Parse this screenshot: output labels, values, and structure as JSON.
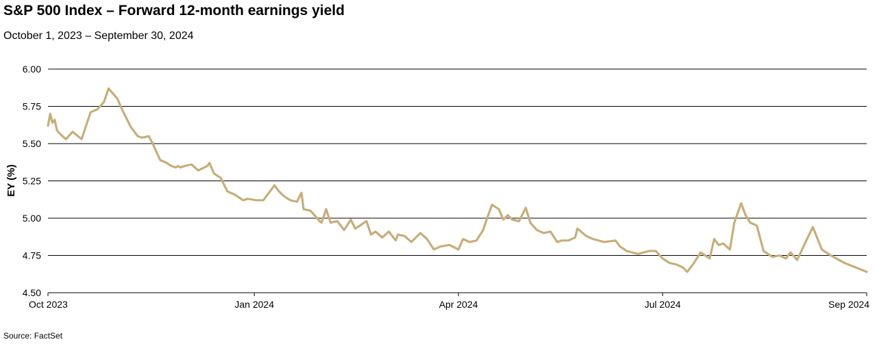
{
  "chart_data": {
    "type": "line",
    "title": "S&P 500 Index – Forward 12-month earnings yield",
    "subtitle": "October 1, 2023 – September 30, 2024",
    "ylabel": "EY (%)",
    "xlabel": "",
    "source": "Source: FactSet",
    "ylim": [
      4.5,
      6.0
    ],
    "yticks": [
      "6.00",
      "5.75",
      "5.50",
      "5.25",
      "5.00",
      "4.75",
      "4.50"
    ],
    "ytick_values": [
      6.0,
      5.75,
      5.5,
      5.25,
      5.0,
      4.75,
      4.5
    ],
    "xlim": [
      "2023-10-01",
      "2024-09-30"
    ],
    "xticks": [
      {
        "label": "Oct 2023",
        "date": "2023-10-01"
      },
      {
        "label": "Jan 2024",
        "date": "2024-01-01"
      },
      {
        "label": "Apr 2024",
        "date": "2024-04-01"
      },
      {
        "label": "Jul 2024",
        "date": "2024-07-01"
      },
      {
        "label": "Sep 2024",
        "date": "2024-09-30"
      }
    ],
    "grid": "horizontal",
    "legend": "none",
    "line_color": "#c8ad78",
    "series": [
      {
        "x": [
          "2023-10-01",
          "2023-10-02",
          "2023-10-03",
          "2023-10-04",
          "2023-10-05",
          "2023-10-06",
          "2023-10-09",
          "2023-10-12",
          "2023-10-16",
          "2023-10-20",
          "2023-10-23",
          "2023-10-26",
          "2023-10-28",
          "2023-11-01",
          "2023-11-03",
          "2023-11-07",
          "2023-11-10",
          "2023-11-12",
          "2023-11-15",
          "2023-11-17",
          "2023-11-20",
          "2023-11-23",
          "2023-11-25",
          "2023-11-27",
          "2023-11-28",
          "2023-11-29",
          "2023-12-01",
          "2023-12-04",
          "2023-12-07",
          "2023-12-11",
          "2023-12-12",
          "2023-12-14",
          "2023-12-15",
          "2023-12-17",
          "2023-12-20",
          "2023-12-23",
          "2023-12-27",
          "2023-12-29",
          "2024-01-02",
          "2024-01-05",
          "2024-01-10",
          "2024-01-11",
          "2024-01-12",
          "2024-01-14",
          "2024-01-17",
          "2024-01-20",
          "2024-01-22",
          "2024-01-23",
          "2024-01-26",
          "2024-01-29",
          "2024-01-30",
          "2024-01-31",
          "2024-02-02",
          "2024-02-04",
          "2024-02-07",
          "2024-02-10",
          "2024-02-13",
          "2024-02-15",
          "2024-02-17",
          "2024-02-20",
          "2024-02-22",
          "2024-02-24",
          "2024-02-27",
          "2024-03-01",
          "2024-03-04",
          "2024-03-05",
          "2024-03-08",
          "2024-03-11",
          "2024-03-15",
          "2024-03-18",
          "2024-03-21",
          "2024-03-24",
          "2024-03-28",
          "2024-04-01",
          "2024-04-03",
          "2024-04-06",
          "2024-04-09",
          "2024-04-12",
          "2024-04-14",
          "2024-04-16",
          "2024-04-19",
          "2024-04-21",
          "2024-04-23",
          "2024-04-25",
          "2024-04-28",
          "2024-05-01",
          "2024-05-03",
          "2024-05-06",
          "2024-05-09",
          "2024-05-12",
          "2024-05-15",
          "2024-05-17",
          "2024-05-20",
          "2024-05-23",
          "2024-05-24",
          "2024-05-28",
          "2024-05-31",
          "2024-06-05",
          "2024-06-10",
          "2024-06-12",
          "2024-06-15",
          "2024-06-20",
          "2024-06-25",
          "2024-06-28",
          "2024-07-01",
          "2024-07-04",
          "2024-07-07",
          "2024-07-10",
          "2024-07-12",
          "2024-07-15",
          "2024-07-18",
          "2024-07-22",
          "2024-07-24",
          "2024-07-26",
          "2024-07-28",
          "2024-07-31",
          "2024-08-02",
          "2024-08-05",
          "2024-08-07",
          "2024-08-09",
          "2024-08-12",
          "2024-08-15",
          "2024-08-19",
          "2024-08-22",
          "2024-08-25",
          "2024-08-27",
          "2024-08-30",
          "2024-09-04",
          "2024-09-06",
          "2024-09-10",
          "2024-09-14",
          "2024-09-20",
          "2024-09-25",
          "2024-09-30"
        ],
        "values": [
          5.62,
          5.7,
          5.64,
          5.66,
          5.59,
          5.57,
          5.53,
          5.58,
          5.53,
          5.71,
          5.73,
          5.78,
          5.87,
          5.8,
          5.73,
          5.61,
          5.55,
          5.54,
          5.55,
          5.49,
          5.39,
          5.37,
          5.35,
          5.34,
          5.35,
          5.34,
          5.35,
          5.36,
          5.32,
          5.35,
          5.37,
          5.3,
          5.29,
          5.27,
          5.18,
          5.16,
          5.12,
          5.13,
          5.12,
          5.12,
          5.22,
          5.2,
          5.18,
          5.15,
          5.12,
          5.11,
          5.17,
          5.06,
          5.05,
          5.0,
          4.98,
          4.97,
          5.06,
          4.97,
          4.98,
          4.92,
          4.99,
          4.93,
          4.95,
          4.98,
          4.89,
          4.91,
          4.87,
          4.91,
          4.85,
          4.89,
          4.88,
          4.84,
          4.9,
          4.86,
          4.79,
          4.81,
          4.82,
          4.79,
          4.86,
          4.84,
          4.85,
          4.92,
          5.01,
          5.09,
          5.06,
          4.99,
          5.02,
          4.99,
          4.98,
          5.07,
          4.97,
          4.92,
          4.9,
          4.91,
          4.84,
          4.85,
          4.85,
          4.87,
          4.93,
          4.88,
          4.86,
          4.84,
          4.85,
          4.81,
          4.78,
          4.76,
          4.78,
          4.78,
          4.73,
          4.7,
          4.69,
          4.67,
          4.64,
          4.7,
          4.77,
          4.73,
          4.86,
          4.82,
          4.83,
          4.79,
          4.97,
          5.1,
          5.02,
          4.97,
          4.95,
          4.78,
          4.74,
          4.75,
          4.73,
          4.77,
          4.72,
          4.88,
          4.94,
          4.79,
          4.75,
          4.7,
          4.67,
          4.64
        ]
      }
    ]
  }
}
